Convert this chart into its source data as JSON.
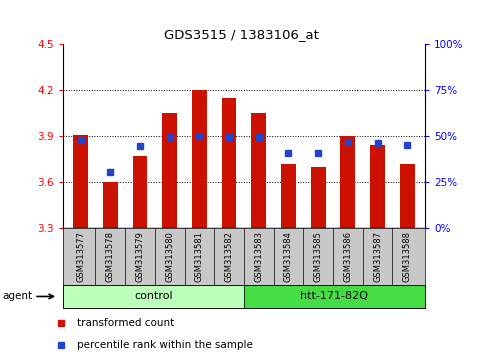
{
  "title": "GDS3515 / 1383106_at",
  "samples": [
    "GSM313577",
    "GSM313578",
    "GSM313579",
    "GSM313580",
    "GSM313581",
    "GSM313582",
    "GSM313583",
    "GSM313584",
    "GSM313585",
    "GSM313586",
    "GSM313587",
    "GSM313588"
  ],
  "transformed_count": [
    3.91,
    3.6,
    3.77,
    4.05,
    4.2,
    4.15,
    4.05,
    3.72,
    3.7,
    3.9,
    3.84,
    3.72
  ],
  "percentile_rank": [
    3.875,
    3.665,
    3.835,
    3.895,
    3.905,
    3.895,
    3.895,
    3.79,
    3.79,
    3.865,
    3.855,
    3.845
  ],
  "ymin": 3.3,
  "ymax": 4.5,
  "yticks": [
    3.3,
    3.6,
    3.9,
    4.2,
    4.5
  ],
  "right_yticks": [
    0,
    25,
    50,
    75,
    100
  ],
  "bar_color": "#cc1100",
  "dot_color": "#2244cc",
  "control_color": "#bbffbb",
  "treatment_color": "#44dd44",
  "control_label": "control",
  "treatment_label": "htt-171-82Q",
  "agent_label": "agent",
  "legend_bar_label": "transformed count",
  "legend_dot_label": "percentile rank within the sample",
  "bar_width": 0.5,
  "n_control": 6,
  "n_treatment": 6
}
